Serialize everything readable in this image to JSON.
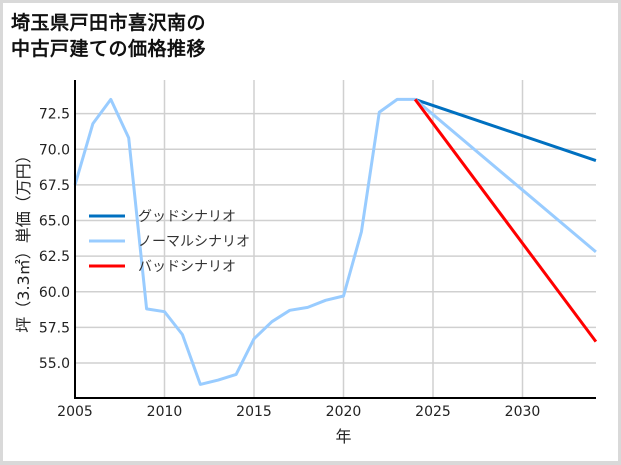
{
  "title_line1": "埼玉県戸田市喜沢南の",
  "title_line2": "中古戸建ての価格推移",
  "chart_data": {
    "type": "line",
    "title": "埼玉県戸田市喜沢南の中古戸建ての価格推移",
    "xlabel": "年",
    "ylabel": "坪（3.3㎡）単価（万円）",
    "xlim": [
      2005,
      2034.1
    ],
    "ylim": [
      52.6,
      74.4
    ],
    "xticks": [
      2005,
      2010,
      2015,
      2020,
      2025,
      2030
    ],
    "yticks": [
      55.0,
      57.5,
      60.0,
      62.5,
      65.0,
      67.5,
      70.0,
      72.5
    ],
    "ytick_labels": [
      "55.0",
      "57.5",
      "60.0",
      "62.5",
      "65.0",
      "67.5",
      "70.0",
      "72.5"
    ],
    "grid": true,
    "legend_position": "center-left",
    "series": [
      {
        "name": "グッドシナリオ",
        "color": "#0070c0",
        "x": [
          2024,
          2034.1
        ],
        "values": [
          73.5,
          69.2
        ]
      },
      {
        "name": "ノーマルシナリオ",
        "color": "#99ccff",
        "x": [
          2005,
          2006,
          2007,
          2008,
          2009,
          2010,
          2011,
          2012,
          2013,
          2014,
          2015,
          2016,
          2017,
          2018,
          2019,
          2020,
          2021,
          2022,
          2023,
          2024,
          2034.1
        ],
        "values": [
          67.5,
          71.8,
          73.5,
          70.8,
          58.8,
          58.6,
          57.0,
          53.5,
          53.8,
          54.2,
          56.7,
          57.9,
          58.7,
          58.9,
          59.4,
          59.7,
          64.2,
          72.6,
          73.5,
          73.5,
          62.8
        ]
      },
      {
        "name": "バッドシナリオ",
        "color": "#ff0000",
        "x": [
          2024,
          2034.1
        ],
        "values": [
          73.5,
          56.5
        ]
      }
    ]
  }
}
